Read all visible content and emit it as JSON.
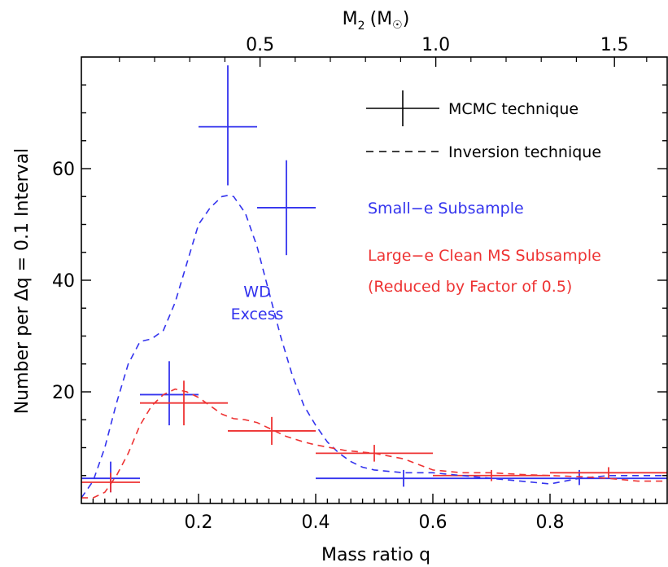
{
  "chart_data": {
    "type": "scatter",
    "xlabel": "Mass ratio q",
    "ylabel": "Number per Δq = 0.1 Interval",
    "xlim": [
      0,
      1
    ],
    "ylim": [
      0,
      80
    ],
    "x_ticks": [
      0.2,
      0.4,
      0.6,
      0.8
    ],
    "y_ticks": [
      20,
      40,
      60
    ],
    "top_axis": {
      "label_main": "M",
      "label_sub": "2",
      "label_unit": "(M",
      "label_unit_close": ")",
      "tick_values_M2": [
        0.5,
        1.0,
        1.5
      ],
      "tick_labels": [
        "0.5",
        "1.0",
        "1.5"
      ],
      "tick_positions_q": [
        0.305,
        0.605,
        0.91
      ]
    },
    "legend": {
      "position": "top-right",
      "mcmc_label": "MCMC technique",
      "inversion_label": "Inversion technique",
      "small_e_label": "Small−e Subsample",
      "large_e_label_1": "Large−e Clean MS Subsample",
      "large_e_label_2": "(Reduced by Factor of 0.5)"
    },
    "annotation": {
      "line1": "WD",
      "line2": "Excess",
      "x": 0.3,
      "y1": 37,
      "y2": 33
    },
    "colors": {
      "small_e": "#3333ee",
      "large_e": "#ee3333",
      "axis": "#000000"
    },
    "series": [
      {
        "name": "Small−e Subsample",
        "kind": "mcmc",
        "points": [
          {
            "x": 0.05,
            "y": 4.5,
            "xlo": 0.0,
            "xhi": 0.1,
            "ylo": 2.0,
            "yhi": 7.5
          },
          {
            "x": 0.15,
            "y": 19.5,
            "xlo": 0.1,
            "xhi": 0.2,
            "ylo": 14,
            "yhi": 25.5
          },
          {
            "x": 0.25,
            "y": 67.5,
            "xlo": 0.2,
            "xhi": 0.3,
            "ylo": 57,
            "yhi": 78.5
          },
          {
            "x": 0.35,
            "y": 53,
            "xlo": 0.3,
            "xhi": 0.4,
            "ylo": 44.5,
            "yhi": 61.5
          },
          {
            "x": 0.55,
            "y": 4.5,
            "xlo": 0.4,
            "xhi": 0.7,
            "ylo": 3,
            "yhi": 6
          },
          {
            "x": 0.85,
            "y": 4.5,
            "xlo": 0.7,
            "xhi": 1.0,
            "ylo": 3.3,
            "yhi": 6
          }
        ]
      },
      {
        "name": "Large−e Clean MS Subsample",
        "kind": "mcmc",
        "points": [
          {
            "x": 0.05,
            "y": 3.8,
            "xlo": 0.0,
            "xhi": 0.1,
            "ylo": 2.0,
            "yhi": 5.5
          },
          {
            "x": 0.175,
            "y": 18,
            "xlo": 0.1,
            "xhi": 0.25,
            "ylo": 14,
            "yhi": 22
          },
          {
            "x": 0.325,
            "y": 13,
            "xlo": 0.25,
            "xhi": 0.4,
            "ylo": 10.5,
            "yhi": 15.5
          },
          {
            "x": 0.5,
            "y": 9,
            "xlo": 0.4,
            "xhi": 0.6,
            "ylo": 7.5,
            "yhi": 10.5
          },
          {
            "x": 0.7,
            "y": 5,
            "xlo": 0.6,
            "xhi": 0.8,
            "ylo": 4,
            "yhi": 6
          },
          {
            "x": 0.9,
            "y": 5.5,
            "xlo": 0.8,
            "xhi": 1.0,
            "ylo": 4.5,
            "yhi": 6.5
          }
        ]
      },
      {
        "name": "Small−e Inversion",
        "kind": "inversion",
        "x": [
          0.0,
          0.02,
          0.04,
          0.06,
          0.08,
          0.1,
          0.12,
          0.14,
          0.16,
          0.18,
          0.2,
          0.22,
          0.24,
          0.25,
          0.26,
          0.28,
          0.3,
          0.32,
          0.34,
          0.36,
          0.38,
          0.4,
          0.42,
          0.44,
          0.46,
          0.48,
          0.5,
          0.55,
          0.6,
          0.65,
          0.7,
          0.75,
          0.8,
          0.85,
          0.9,
          0.95,
          1.0
        ],
        "y": [
          1,
          4,
          10,
          18,
          25,
          29,
          29.5,
          31,
          36,
          43,
          50,
          53,
          55,
          55.2,
          55,
          52,
          46,
          38,
          30,
          23,
          17.5,
          14,
          11,
          9,
          7.5,
          6.5,
          6,
          5.5,
          5.5,
          5,
          4.5,
          4,
          3.5,
          4.5,
          5,
          5,
          5
        ]
      },
      {
        "name": "Large−e Inversion",
        "kind": "inversion",
        "x": [
          0.0,
          0.02,
          0.04,
          0.06,
          0.08,
          0.1,
          0.12,
          0.14,
          0.16,
          0.18,
          0.2,
          0.22,
          0.24,
          0.26,
          0.28,
          0.3,
          0.32,
          0.35,
          0.38,
          0.4,
          0.45,
          0.5,
          0.55,
          0.6,
          0.65,
          0.7,
          0.75,
          0.8,
          0.85,
          0.9,
          0.95,
          1.0
        ],
        "y": [
          1,
          1,
          2,
          5,
          9,
          14,
          17.5,
          19.5,
          20.5,
          20,
          19,
          17.5,
          16,
          15.2,
          15,
          14.5,
          13.5,
          12,
          11,
          10.5,
          9.5,
          9,
          8,
          6,
          5.5,
          5.5,
          5.2,
          5,
          4.8,
          4.5,
          4,
          4
        ]
      }
    ]
  }
}
